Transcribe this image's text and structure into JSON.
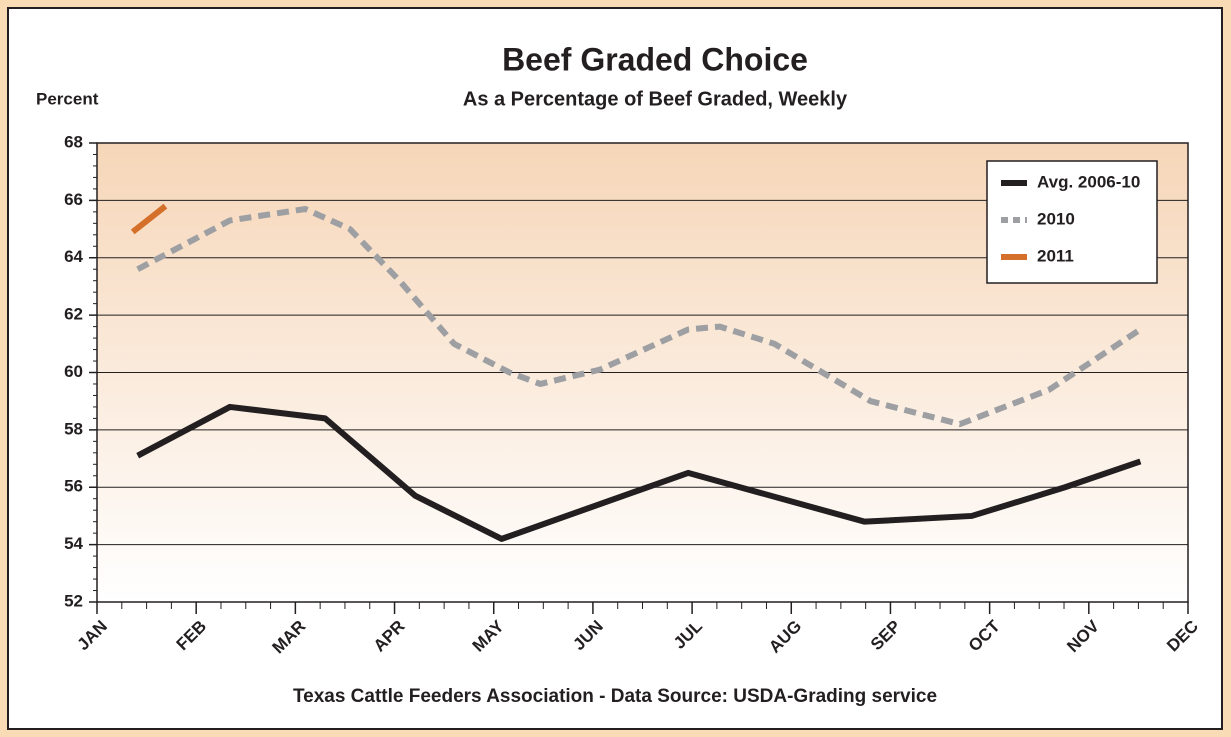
{
  "chart_data": {
    "type": "line",
    "title": "Beef Graded Choice",
    "subtitle": "As a Percentage of Beef Graded, Weekly",
    "y_label": "Percent",
    "source": "Texas Cattle Feeders Association - Data Source: USDA-Grading service",
    "xlim": [
      0,
      11
    ],
    "xticks": [
      {
        "value": 0,
        "label": "JAN"
      },
      {
        "value": 1,
        "label": "FEB"
      },
      {
        "value": 2,
        "label": "MAR"
      },
      {
        "value": 3,
        "label": "APR"
      },
      {
        "value": 4,
        "label": "MAY"
      },
      {
        "value": 5,
        "label": "JUN"
      },
      {
        "value": 6,
        "label": "JUL"
      },
      {
        "value": 7,
        "label": "AUG"
      },
      {
        "value": 8,
        "label": "SEP"
      },
      {
        "value": 9,
        "label": "OCT"
      },
      {
        "value": 10,
        "label": "NOV"
      },
      {
        "value": 11,
        "label": "DEC"
      }
    ],
    "ylim": [
      52,
      68
    ],
    "yticks": [
      52,
      54,
      56,
      58,
      60,
      62,
      64,
      66,
      68
    ],
    "grid": true,
    "legend": "upper right",
    "series": [
      {
        "name": "Avg. 2006-10",
        "color": "#231f20",
        "dash": "solid",
        "x": [
          0.41,
          1.34,
          2.3,
          3.21,
          4.08,
          5.96,
          7.74,
          8.82,
          9.76,
          10.52
        ],
        "values": [
          57.1,
          58.8,
          58.4,
          55.7,
          54.2,
          56.5,
          54.8,
          55.0,
          56.0,
          56.9
        ]
      },
      {
        "name": "2010",
        "color": "#9d9fa2",
        "dash": "dashed",
        "x": [
          0.41,
          1.34,
          2.1,
          2.55,
          3.05,
          3.6,
          4.16,
          4.47,
          5.07,
          5.96,
          6.28,
          6.83,
          7.8,
          8.7,
          9.6,
          10.52
        ],
        "values": [
          63.6,
          65.3,
          65.7,
          65.0,
          63.2,
          61.0,
          60.0,
          59.6,
          60.1,
          61.5,
          61.6,
          61.0,
          59.0,
          58.2,
          59.4,
          61.5
        ]
      },
      {
        "name": "2011",
        "color": "#d5702a",
        "dash": "solid",
        "x": [
          0.36,
          0.69
        ],
        "values": [
          64.9,
          65.8
        ]
      }
    ]
  }
}
